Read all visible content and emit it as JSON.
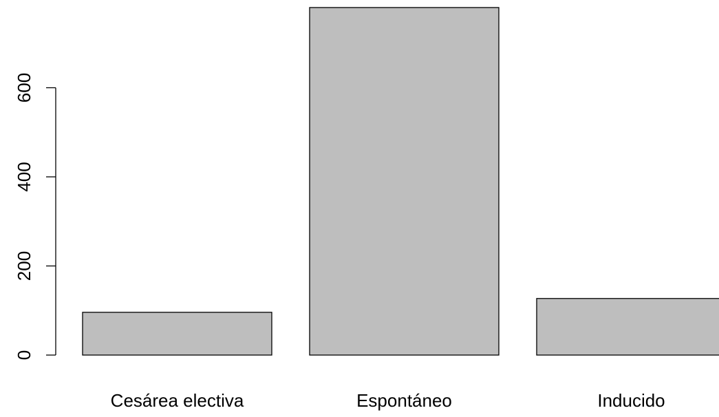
{
  "chart_data": {
    "type": "bar",
    "title": "",
    "xlabel": "",
    "ylabel": "",
    "categories": [
      "Cesárea electiva",
      "Espontáneo",
      "Inducido"
    ],
    "values": [
      96,
      780,
      127
    ],
    "ylim": [
      0,
      780
    ],
    "yticks": [
      0,
      200,
      400,
      600
    ],
    "ytick_labels": [
      "0",
      "200",
      "400",
      "600"
    ],
    "grid": false,
    "legend": "none",
    "colors": {
      "bar_fill": "#bebebe",
      "bar_stroke": "#000000",
      "axis": "#000000",
      "text": "#000000"
    }
  }
}
